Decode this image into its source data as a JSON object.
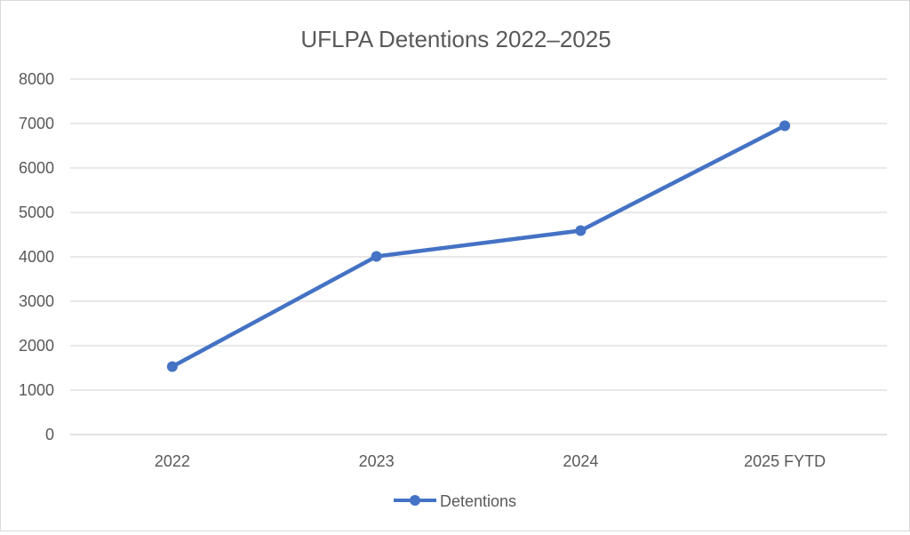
{
  "chart_data": {
    "type": "line",
    "title": "UFLPA Detentions 2022–2025",
    "xlabel": "",
    "ylabel": "",
    "categories": [
      "2022",
      "2023",
      "2024",
      "2025 FYTD"
    ],
    "series": [
      {
        "name": "Detentions",
        "values": [
          1530,
          4010,
          4590,
          6950
        ],
        "color": "#4472C4"
      }
    ],
    "ylim": [
      0,
      8000
    ],
    "yticks": [
      "0",
      "1000",
      "2000",
      "3000",
      "4000",
      "5000",
      "6000",
      "7000",
      "8000"
    ],
    "grid": true,
    "legend": "bottom",
    "markers": "circle"
  }
}
